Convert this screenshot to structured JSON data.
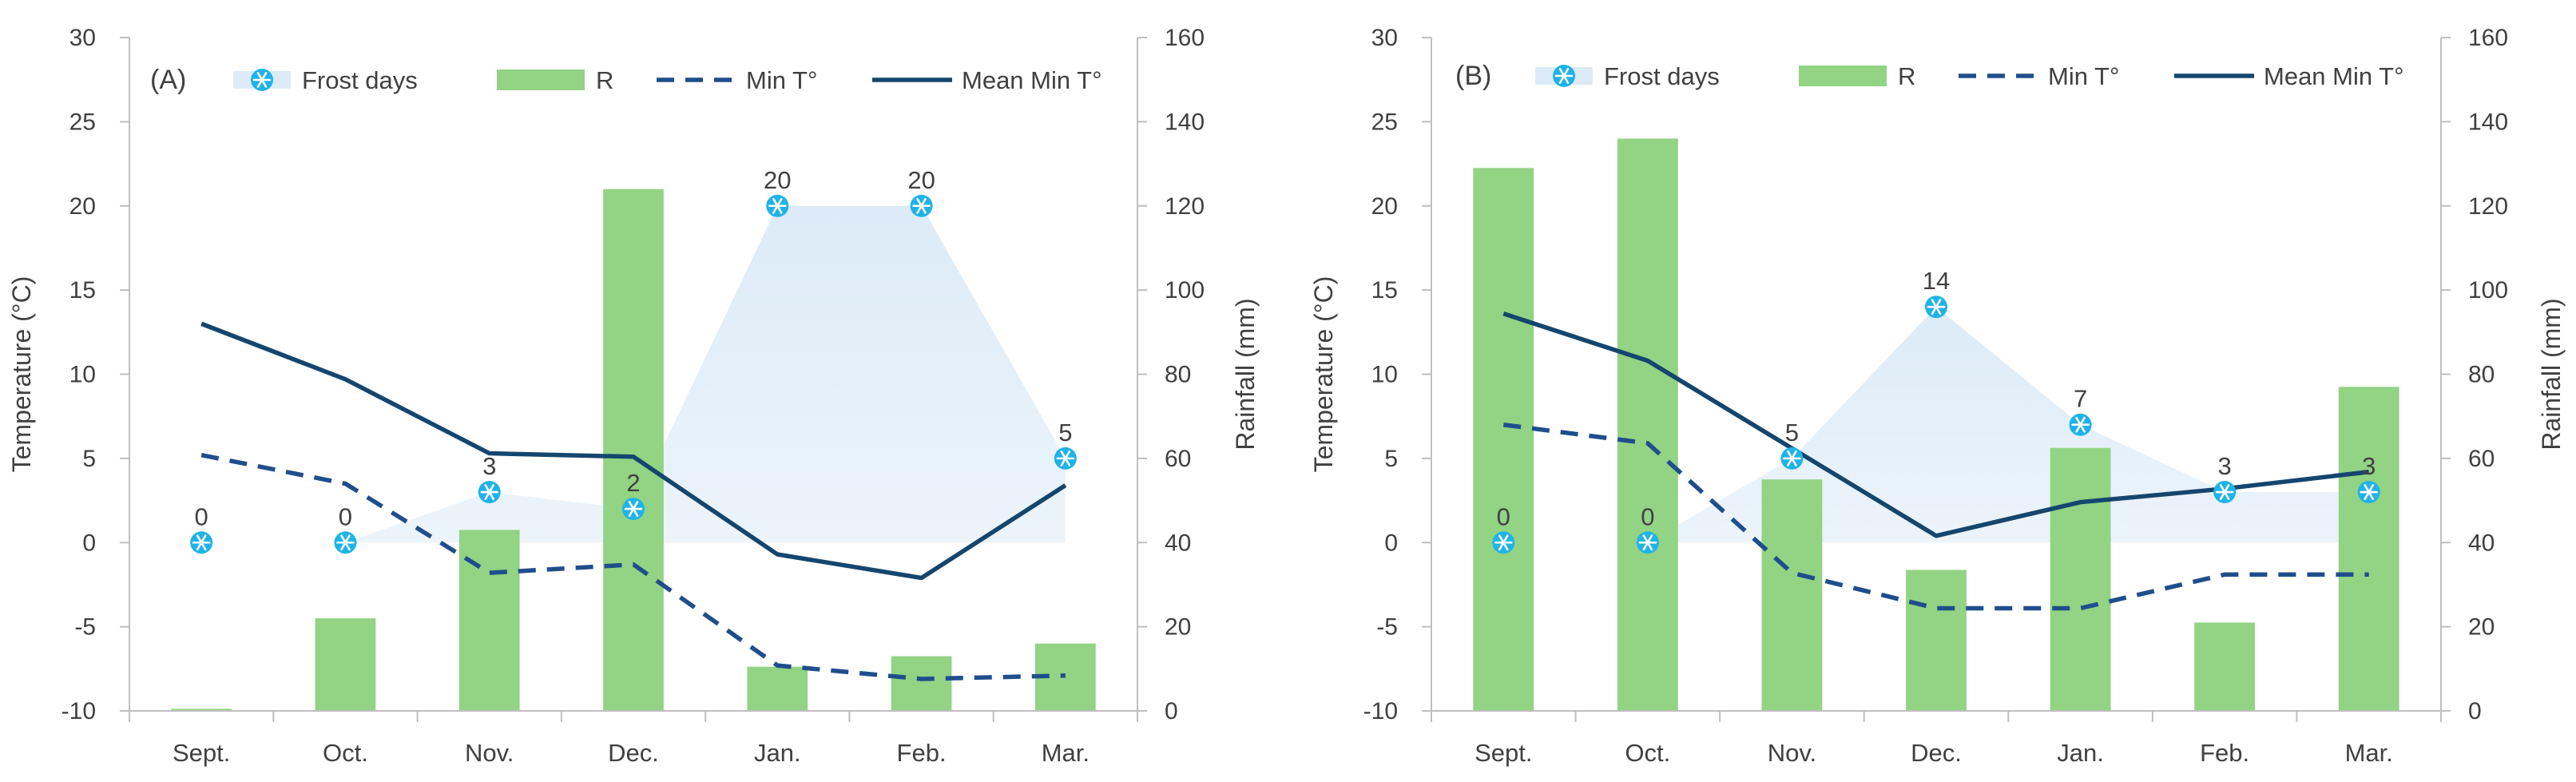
{
  "colors": {
    "frost_fill": "#dcebf7",
    "frost_marker": "#1fb3e8",
    "rain_bar": "#92d384",
    "min_line": "#1f4e8c",
    "mean_line": "#14466e",
    "axis": "#bfbfbf",
    "text": "#404040"
  },
  "chart_data": [
    {
      "type": "bar+line+area",
      "panel_label": "(A)",
      "categories": [
        "Sept.",
        "Oct.",
        "Nov.",
        "Dec.",
        "Jan.",
        "Feb.",
        "Mar."
      ],
      "left_axis": {
        "label": "Temperature (°C)",
        "range": [
          -10,
          30
        ],
        "ticks": [
          "-10",
          "-5",
          "0",
          "5",
          "10",
          "15",
          "20",
          "25",
          "30"
        ]
      },
      "right_axis": {
        "label": "Rainfall (mm)",
        "range": [
          0,
          160
        ],
        "ticks": [
          "0",
          "20",
          "40",
          "60",
          "80",
          "100",
          "120",
          "140",
          "160"
        ]
      },
      "legend": [
        "Frost days",
        "R",
        "Min T°",
        "Mean Min T°"
      ],
      "series": [
        {
          "name": "Frost days",
          "axis": "left",
          "values": [
            0,
            0,
            3,
            2,
            20,
            20,
            5
          ],
          "labels": [
            "0",
            "0",
            "3",
            "2",
            "20",
            "20",
            "5"
          ]
        },
        {
          "name": "R",
          "axis": "right",
          "values": [
            0.5,
            22,
            43,
            124,
            10.5,
            13,
            16
          ]
        },
        {
          "name": "Min T°",
          "axis": "left",
          "values": [
            5.2,
            3.5,
            -1.8,
            -1.3,
            -7.3,
            -8.1,
            -7.9
          ]
        },
        {
          "name": "Mean Min T°",
          "axis": "left",
          "values": [
            13,
            9.7,
            5.3,
            5.1,
            -0.7,
            -2.1,
            3.4
          ]
        }
      ]
    },
    {
      "type": "bar+line+area",
      "panel_label": "(B)",
      "categories": [
        "Sept.",
        "Oct.",
        "Nov.",
        "Dec.",
        "Jan.",
        "Feb.",
        "Mar."
      ],
      "left_axis": {
        "label": "Temperature (°C)",
        "range": [
          -10,
          30
        ],
        "ticks": [
          "-10",
          "-5",
          "0",
          "5",
          "10",
          "15",
          "20",
          "25",
          "30"
        ]
      },
      "right_axis": {
        "label": "Rainfall (mm)",
        "range": [
          0,
          160
        ],
        "ticks": [
          "0",
          "20",
          "40",
          "60",
          "80",
          "100",
          "120",
          "140",
          "160"
        ]
      },
      "legend": [
        "Frost days",
        "R",
        "Min T°",
        "Mean Min T°"
      ],
      "series": [
        {
          "name": "Frost days",
          "axis": "left",
          "values": [
            0,
            0,
            5,
            14,
            7,
            3,
            3
          ],
          "labels": [
            "0",
            "0",
            "5",
            "14",
            "7",
            "3",
            "3"
          ]
        },
        {
          "name": "R",
          "axis": "right",
          "values": [
            129,
            136,
            55,
            33.5,
            62.5,
            21,
            77
          ]
        },
        {
          "name": "Min T°",
          "axis": "left",
          "values": [
            7,
            5.9,
            -1.8,
            -3.9,
            -3.9,
            -1.9,
            -1.9
          ]
        },
        {
          "name": "Mean Min T°",
          "axis": "left",
          "values": [
            13.6,
            10.8,
            5.6,
            0.4,
            2.4,
            3.2,
            4.2
          ]
        }
      ]
    }
  ]
}
